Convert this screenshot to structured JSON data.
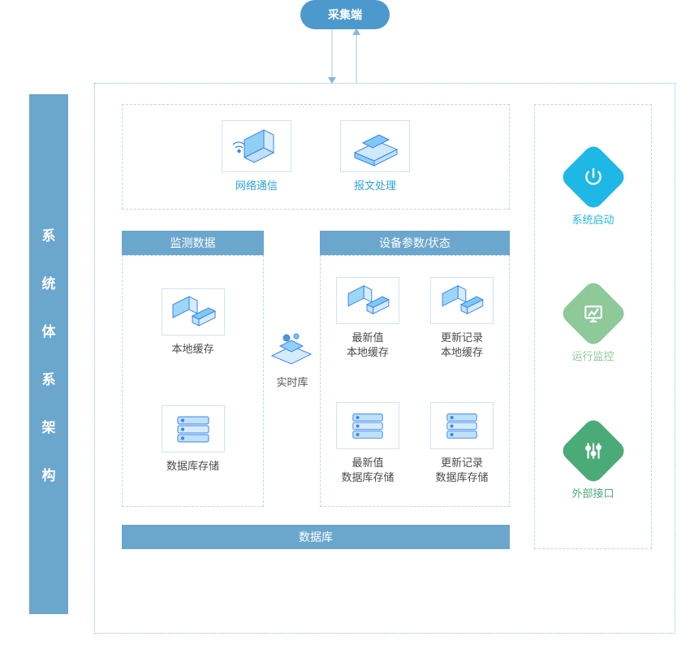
{
  "colors": {
    "header_blue": "#4c99cd",
    "bar_blue": "#6ba6cd",
    "dash_border": "#b9d8ec",
    "dot_border": "#8fbee0",
    "caption_blue": "#2fa3dc",
    "caption_dark": "#4a4a4a",
    "icon_cyan": "#1eb8e6",
    "icon_green_light": "#8ec99a",
    "icon_green": "#4bab78",
    "accent_blue": "#3b82f6"
  },
  "top_pill": "采集端",
  "left_title_chars": [
    "系",
    "统",
    "体",
    "系",
    "架",
    "构"
  ],
  "top_group": {
    "network": "网络通信",
    "message": "报文处理"
  },
  "section_headers": {
    "monitor": "监测数据",
    "device": "设备参数/状态"
  },
  "monitor_group": {
    "cache": "本地缓存",
    "dbstore": "数据库存储"
  },
  "realtime": "实时库",
  "device_group": {
    "latest_cache": "最新值\n本地缓存",
    "update_cache": "更新记录\n本地缓存",
    "latest_db": "最新值\n数据库存储",
    "update_db": "更新记录\n数据库存储"
  },
  "db_bar": "数据库",
  "side": {
    "startup": {
      "label": "系统启动",
      "color": "#1eb8e6"
    },
    "monitor": {
      "label": "运行监控",
      "color": "#8ec99a"
    },
    "external": {
      "label": "外部接口",
      "color": "#4bab78"
    }
  }
}
